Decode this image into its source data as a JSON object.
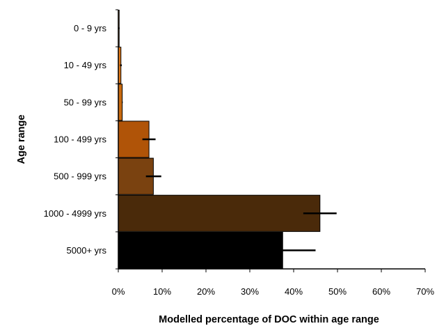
{
  "chart_data": {
    "type": "bar",
    "orientation": "horizontal",
    "title": "",
    "xlabel": "Modelled percentage of DOC within age range",
    "ylabel": "Age range",
    "categories": [
      "0 - 9 yrs",
      "10 - 49 yrs",
      "50 - 99 yrs",
      "100 - 499 yrs",
      "500 - 999 yrs",
      "1000 - 4999 yrs",
      "5000+ yrs"
    ],
    "values": [
      0.2,
      0.6,
      0.9,
      7.0,
      8.0,
      46.0,
      37.5
    ],
    "error_upper": [
      0.3,
      0.8,
      1.0,
      8.5,
      9.8,
      49.8,
      45.0
    ],
    "error_lower": [
      0.0,
      0.4,
      0.8,
      5.5,
      6.3,
      42.2,
      37.5
    ],
    "bar_colors": [
      "#e8a040",
      "#e07818",
      "#c86a10",
      "#b05408",
      "#7a4210",
      "#4a2a0a",
      "#000000"
    ],
    "xlim": [
      0,
      70
    ],
    "xticks": [
      "0%",
      "10%",
      "20%",
      "30%",
      "40%",
      "50%",
      "60%",
      "70%"
    ],
    "xtick_values": [
      0,
      10,
      20,
      30,
      40,
      50,
      60,
      70
    ],
    "grid": false,
    "legend": "none"
  }
}
